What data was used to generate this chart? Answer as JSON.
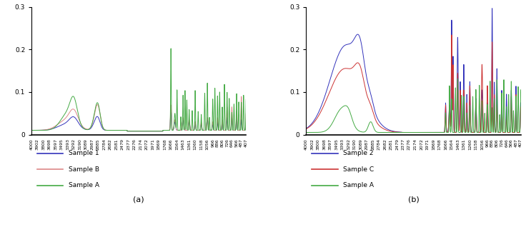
{
  "title_a": "(a)",
  "title_b": "(b)",
  "ylim": [
    0,
    0.3
  ],
  "yticks": [
    0,
    0.1,
    0.2,
    0.3
  ],
  "legend_a": [
    "Sample 1",
    "Sample B",
    "Sample A"
  ],
  "legend_b": [
    "Sample 2",
    "Sample C",
    "Sample A"
  ],
  "colors_a": [
    "#3333bb",
    "#dd8888",
    "#44aa44"
  ],
  "colors_b": [
    "#3333bb",
    "#cc3333",
    "#44aa44"
  ],
  "xtick_labels": [
    "4000",
    "3902",
    "3800",
    "3698",
    "3597",
    "3495",
    "3393",
    "3292",
    "3190",
    "3089",
    "2987",
    "2885",
    "2784",
    "2682",
    "2581",
    "2479",
    "2377",
    "2276",
    "2174",
    "2072",
    "1971",
    "1869",
    "1768",
    "1666",
    "1564",
    "1463",
    "1361",
    "1260",
    "1158",
    "1056",
    "966",
    "886",
    "806",
    "726",
    "646",
    "566",
    "487",
    "407"
  ]
}
